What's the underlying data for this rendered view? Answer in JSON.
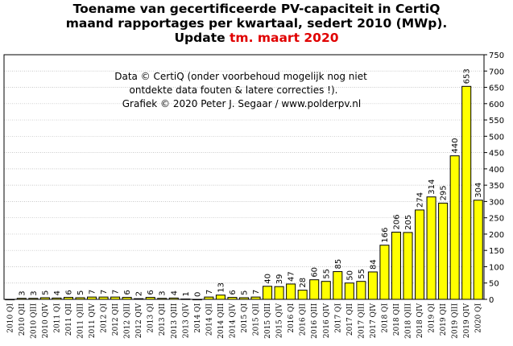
{
  "title": {
    "line1": "Toename van gecertificeerde PV-capaciteit in CertiQ",
    "line2": "maand rapportages per kwartaal, sedert 2010 (MWp).",
    "line3_prefix": "Update ",
    "line3_highlight": "tm. maart 2020"
  },
  "annotation": {
    "line1": "Data © CertiQ (onder voorbehoud mogelijk nog niet",
    "line2": "ontdekte data fouten & latere correcties !).",
    "line3": "Grafiek © 2020 Peter J. Segaar / www.polderpv.nl"
  },
  "colors": {
    "bar": "#ffff00",
    "bar_stroke": "#000000",
    "highlight_label": "#cc0000",
    "title_highlight": "#e00000",
    "grid": "#b8b8b8"
  },
  "chart_data": {
    "type": "bar",
    "title": "Toename van gecertificeerde PV-capaciteit in CertiQ maand rapportages per kwartaal, sedert 2010 (MWp). Update tm. maart 2020",
    "xlabel": "",
    "ylabel": "",
    "ylim": [
      0,
      750
    ],
    "yticks": [
      0,
      50,
      100,
      150,
      200,
      250,
      300,
      350,
      400,
      450,
      500,
      550,
      600,
      650,
      700,
      750
    ],
    "y_axis_side": "right",
    "grid": "horizontal",
    "highlighted_category": "2019 QIV",
    "categories": [
      "2010 QI",
      "2010 QII",
      "2010 QIII",
      "2010 QIV",
      "2011 QI",
      "2011 QII",
      "2011 QIII",
      "2011 QIV",
      "2012 QI",
      "2012 QII",
      "2012 QIII",
      "2012 QIV",
      "2013 QI",
      "2013 QII",
      "2013 QIII",
      "2013 QIV",
      "2014 QI",
      "2014 QII",
      "2014 QIII",
      "2014 QIV",
      "2015 QI",
      "2015 QII",
      "2015 QIII",
      "2015 QIV",
      "2016 QI",
      "2016 QII",
      "2016 QIII",
      "2016 QIV",
      "2017 QI",
      "2017 QII",
      "2017 QIII",
      "2017 QIV",
      "2018 QI",
      "2018 QII",
      "2018 QIII",
      "2018 QIV",
      "2019 QI",
      "2019 QII",
      "2019 QIII",
      "2019 QIV",
      "2020 QI"
    ],
    "values": [
      0,
      3,
      3,
      5,
      4,
      6,
      5,
      7,
      7,
      7,
      6,
      2,
      6,
      3,
      4,
      1,
      0,
      7,
      13,
      6,
      5,
      7,
      40,
      39,
      47,
      28,
      60,
      55,
      85,
      50,
      55,
      84,
      166,
      206,
      205,
      274,
      314,
      295,
      440,
      653,
      304
    ],
    "data_labels": [
      "",
      "3",
      "3",
      "5",
      "4",
      "6",
      "5",
      "7",
      "7",
      "7",
      "6",
      "2",
      "6",
      "3",
      "4",
      "1",
      "0",
      "7",
      "13",
      "6",
      "5",
      "7",
      "40",
      "39",
      "47",
      "28",
      "60",
      "55",
      "85",
      "50",
      "55",
      "84",
      "166",
      "206",
      "205",
      "274",
      "314",
      "295",
      "440",
      "653",
      "304"
    ]
  }
}
